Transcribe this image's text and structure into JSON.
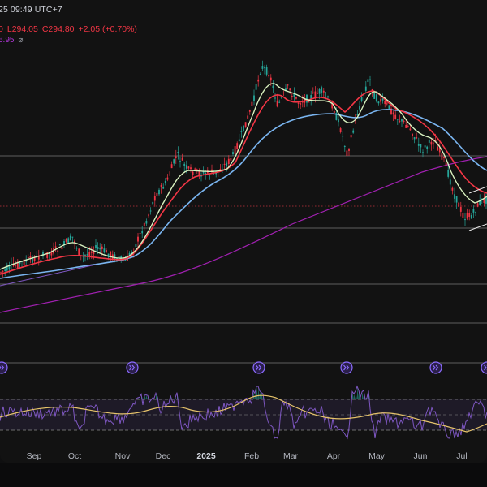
{
  "header": {
    "datetime": "25 09:49 UTC+7",
    "ohlc_tail": "0",
    "low_label": "L",
    "low": "294.05",
    "close_label": "C",
    "close": "294.80",
    "change": "+2.05 (+0.70%)",
    "indicator_value": "6.95",
    "indicator_symbol": "⌀"
  },
  "x_axis": {
    "labels": [
      "Sep",
      "Oct",
      "Nov",
      "Dec",
      "2025",
      "Feb",
      "Mar",
      "Apr",
      "May",
      "Jun",
      "Jul"
    ]
  },
  "event_markers": {
    "icon": "double-chevron-right-icon",
    "count": 6
  },
  "colors": {
    "background": "#121212",
    "up_candle": "#26a69a",
    "down_candle": "#f23645",
    "ema_fast": "#e1f5c4",
    "ema_mid": "#f23645",
    "ema_slow": "#7ab5f0",
    "long_ma": "#a020b0",
    "rsi": "#7e57c2",
    "rsi_ma": "#e6c36b",
    "marker": "#8c6bff"
  }
}
